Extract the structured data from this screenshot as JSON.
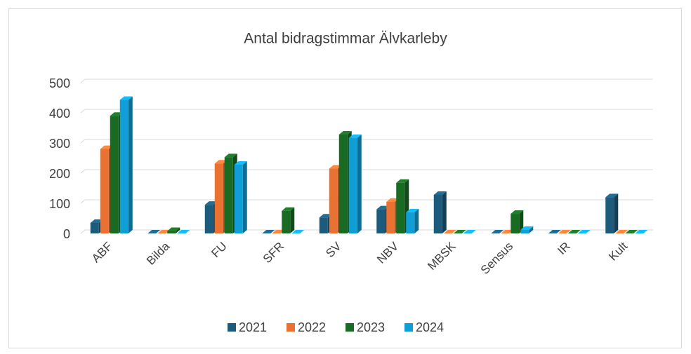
{
  "chart_data": {
    "type": "bar3d",
    "title": "Antal  bidragstimmar Älvkarleby",
    "categories": [
      "ABF",
      "Bilda",
      "FU",
      "SFR",
      "SV",
      "NBV",
      "MBSK",
      "Sensus",
      "IR",
      "Kult"
    ],
    "series": [
      {
        "name": "2021",
        "color": "#1c5b7c",
        "values": [
          35,
          0,
          95,
          0,
          53,
          80,
          128,
          0,
          0,
          120
        ]
      },
      {
        "name": "2022",
        "color": "#e97132",
        "values": [
          280,
          0,
          232,
          0,
          215,
          105,
          0,
          0,
          0,
          0
        ]
      },
      {
        "name": "2023",
        "color": "#196b24",
        "values": [
          390,
          8,
          253,
          75,
          328,
          168,
          0,
          65,
          0,
          0
        ]
      },
      {
        "name": "2024",
        "color": "#0f9ed5",
        "values": [
          443,
          0,
          228,
          0,
          317,
          70,
          0,
          12,
          0,
          0
        ]
      }
    ],
    "ylim": [
      0,
      500
    ],
    "yticks": [
      0,
      100,
      200,
      300,
      400,
      500
    ],
    "grid": true,
    "legend": "bottom"
  }
}
